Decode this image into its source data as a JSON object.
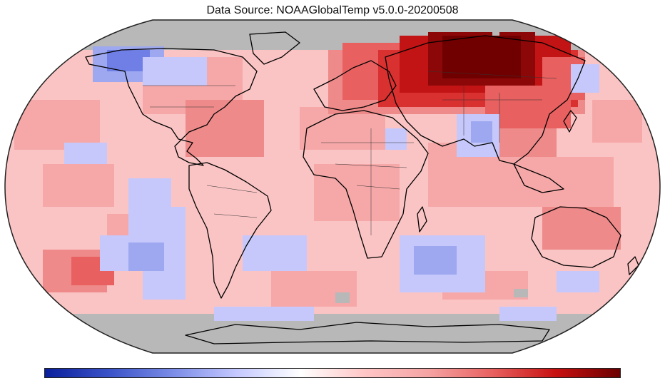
{
  "title": "Data Source: NOAAGlobalTemp v5.0.0-20200508",
  "legend": {
    "colors": [
      "#0a1f9c",
      "#3a52c8",
      "#7a8ce6",
      "#c4c8ff",
      "#ffffff",
      "#ffc6c6",
      "#f5a3a3",
      "#e86060",
      "#c71010",
      "#6b0000"
    ]
  },
  "palette": {
    "missing": "#b8b8b8",
    "base_warm": "#fbc4c4",
    "warm": "#f6a8a8",
    "warmer": "#ee8a8a",
    "hot": "#d93030",
    "hotter": "#c21414",
    "hottest": "#700000",
    "cool": "#c6c8fb",
    "cooler": "#9da8f0",
    "coldest": "#6f7fe6",
    "land_line": "#000000"
  }
}
